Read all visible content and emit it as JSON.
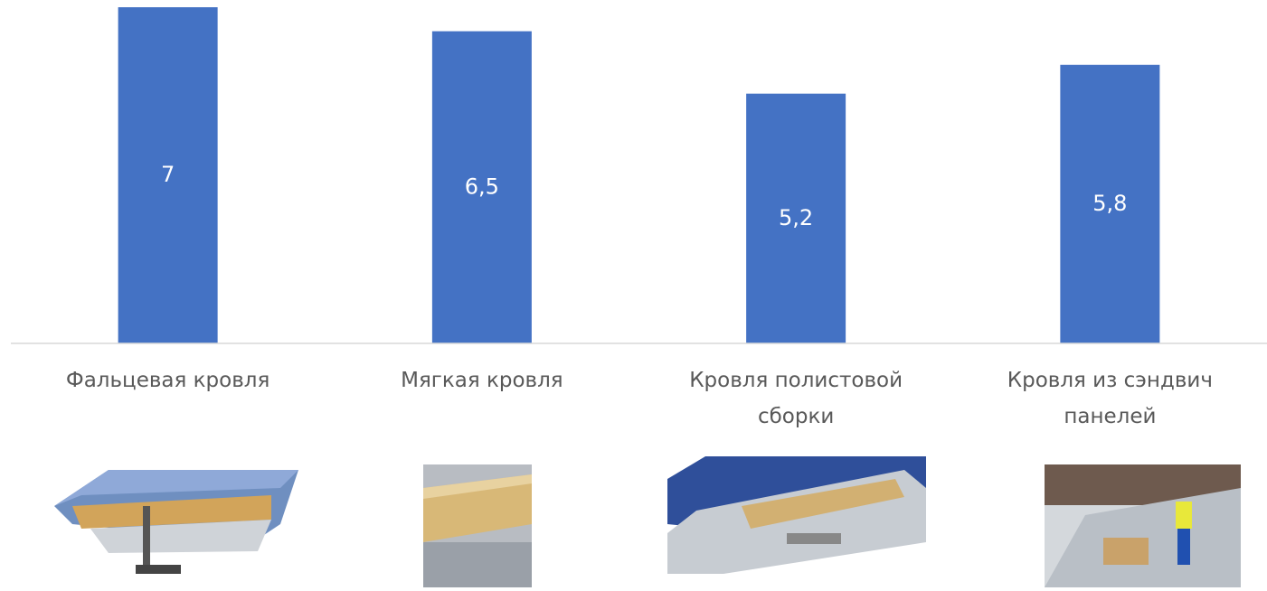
{
  "chart_data": {
    "type": "bar",
    "categories": [
      "Фальцевая кровля",
      "Мягкая кровля",
      "Кровля полистовой сборки",
      "Кровля из сэндвич панелей"
    ],
    "values": [
      7,
      6.5,
      5.2,
      5.8
    ],
    "value_labels": [
      "7",
      "6,5",
      "5,2",
      "5,8"
    ],
    "color": "#4472c4",
    "ylim": [
      0,
      7
    ]
  }
}
